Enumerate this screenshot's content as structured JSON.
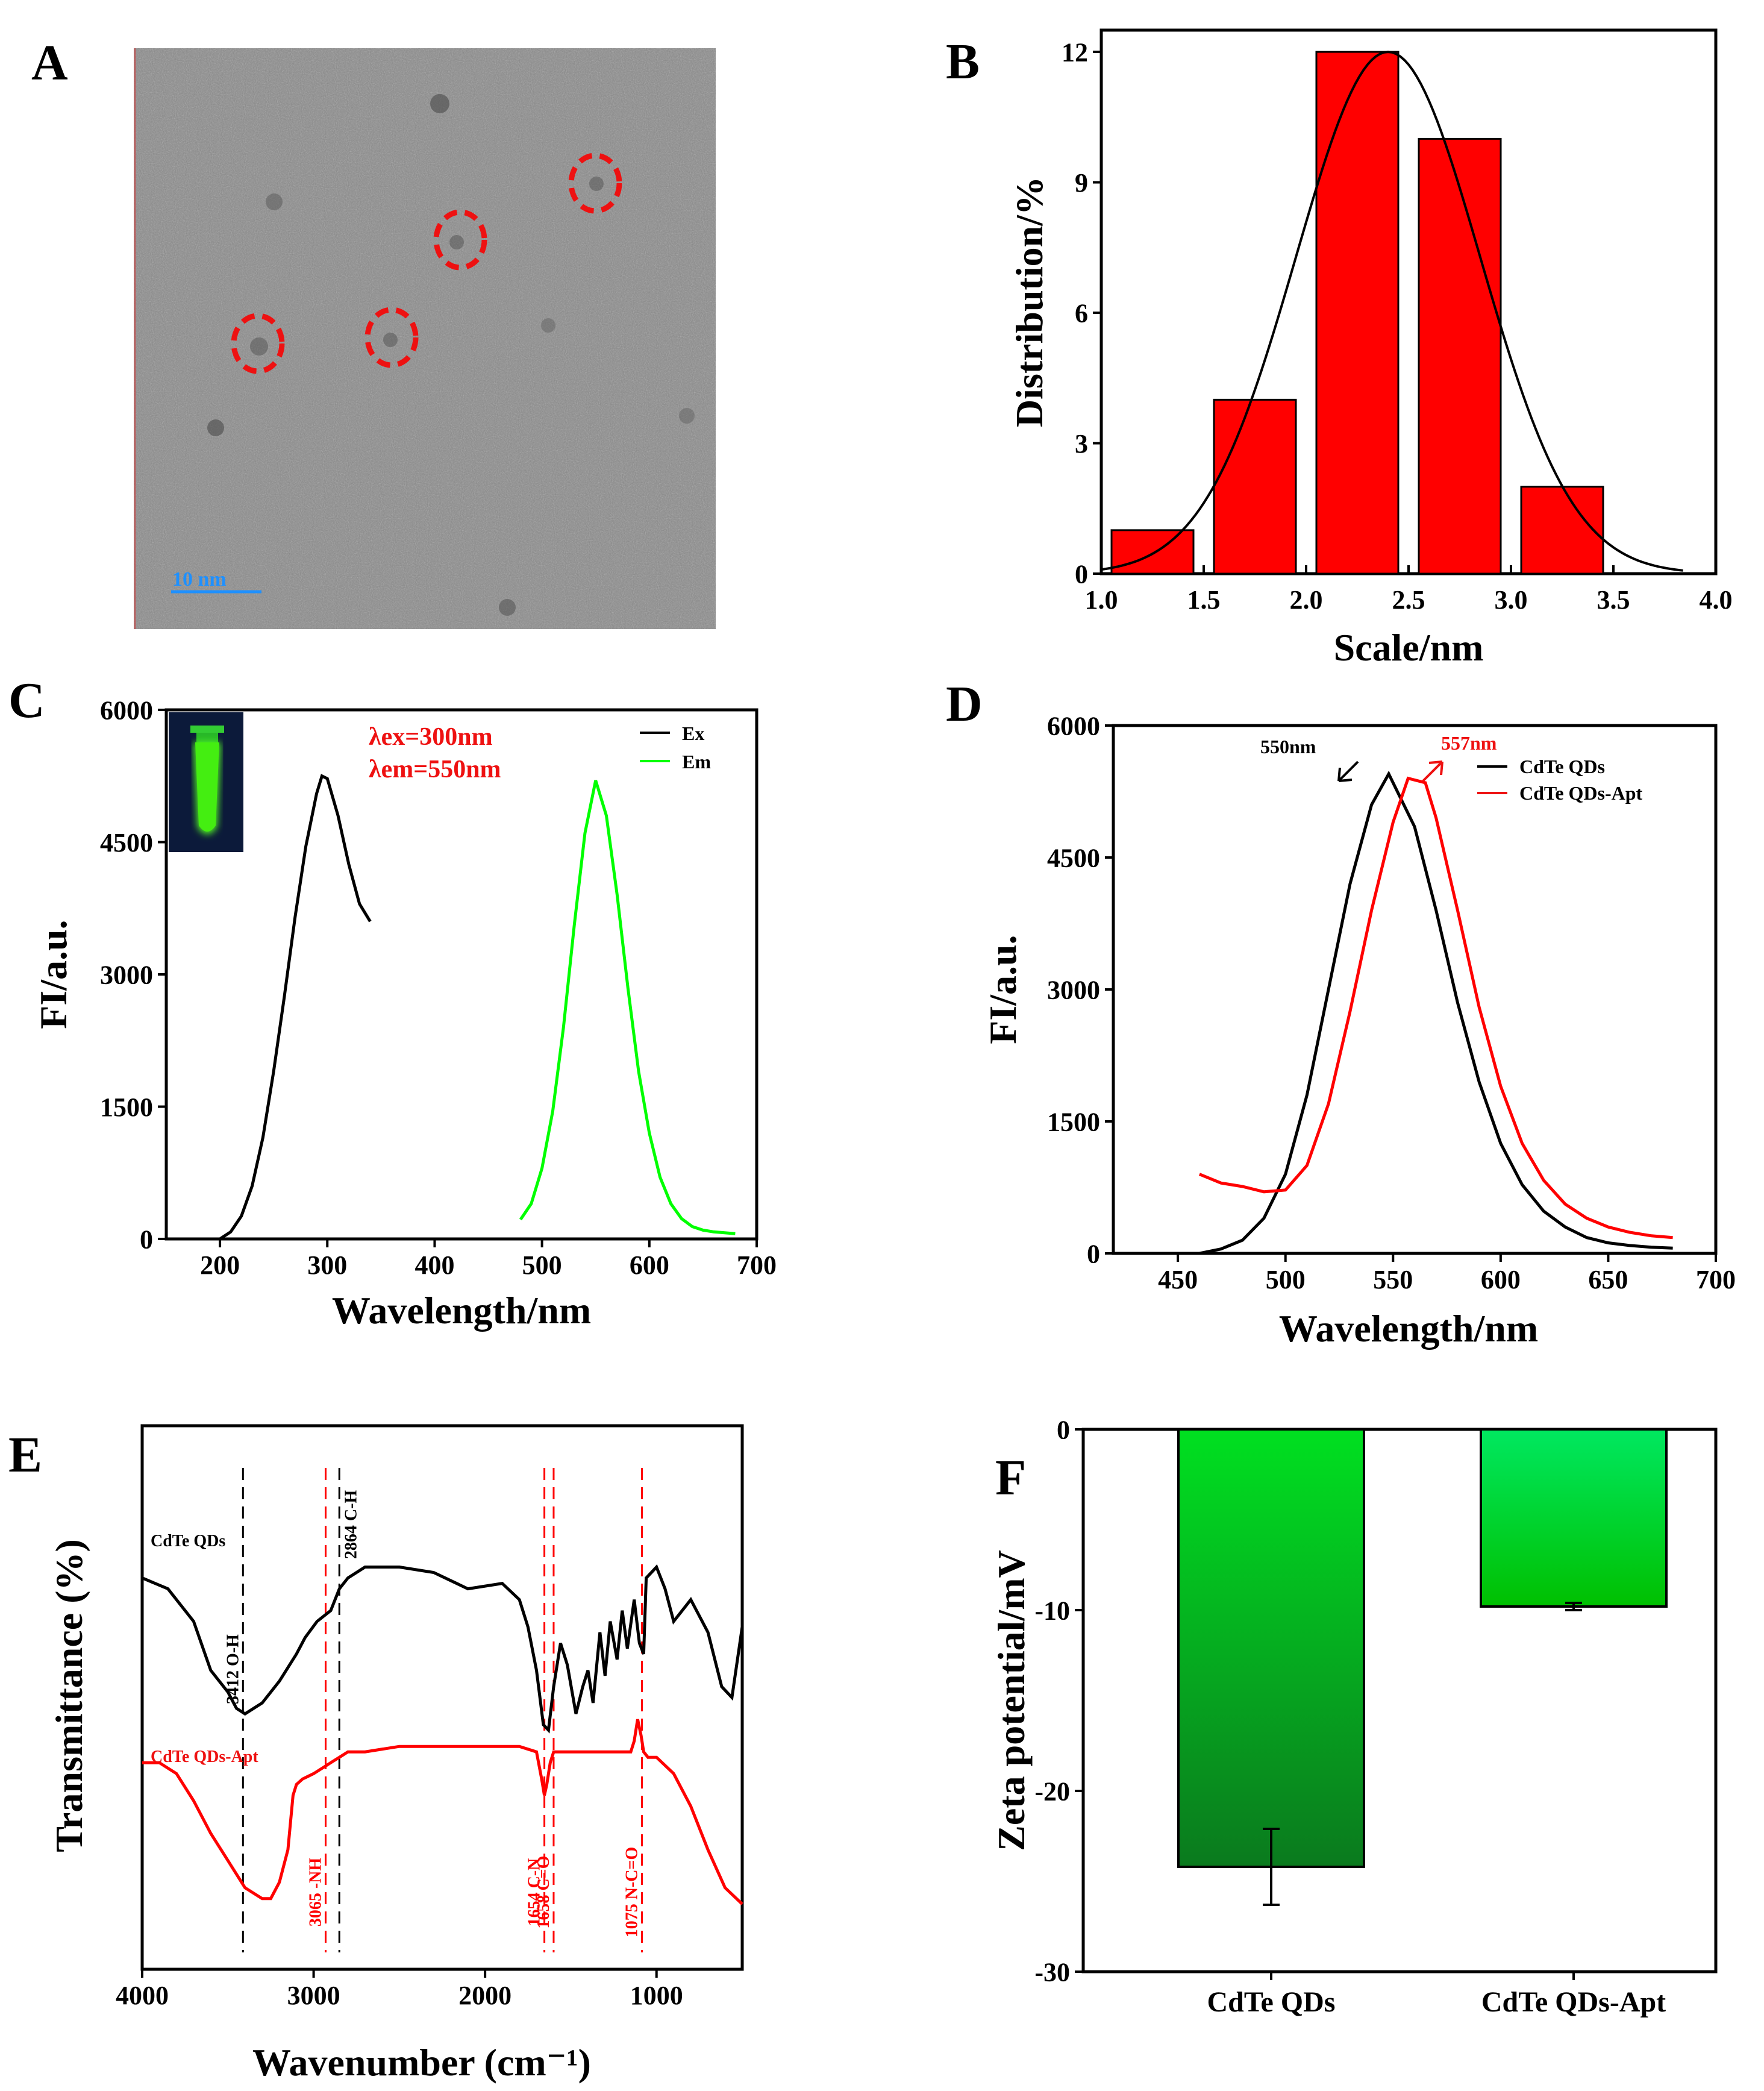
{
  "panels": {
    "A": {
      "letter": "A",
      "scale_bar_label": "10 nm"
    },
    "B": {
      "letter": "B",
      "chart_data": {
        "type": "bar",
        "bars": [
          {
            "from": 1.05,
            "to": 1.45,
            "value": 1
          },
          {
            "from": 1.55,
            "to": 1.95,
            "value": 4
          },
          {
            "from": 2.05,
            "to": 2.45,
            "value": 12
          },
          {
            "from": 2.55,
            "to": 2.95,
            "value": 10
          },
          {
            "from": 3.05,
            "to": 3.45,
            "value": 2
          }
        ],
        "fit": {
          "type": "gaussian",
          "peak": 12,
          "center": 2.4,
          "sigma": 0.45
        },
        "xlabel": "Scale/nm",
        "ylabel": "Distribution/%",
        "xlim": [
          1.0,
          4.0
        ],
        "ylim": [
          0,
          12.5
        ],
        "xticks": [
          "1.0",
          "1.5",
          "2.0",
          "2.5",
          "3.0",
          "3.5",
          "4.0"
        ],
        "yticks": [
          "0",
          "3",
          "6",
          "9",
          "12"
        ],
        "bar_color": "#ff0000"
      }
    },
    "C": {
      "letter": "C",
      "chart_data": {
        "type": "line",
        "xlabel": "Wavelength/nm",
        "ylabel": "FI/a.u.",
        "xlim": [
          150,
          700
        ],
        "ylim": [
          0,
          6000
        ],
        "xticks": [
          "200",
          "300",
          "400",
          "500",
          "600",
          "700"
        ],
        "yticks": [
          "0",
          "1500",
          "3000",
          "4500",
          "6000"
        ],
        "annotations": [
          "λex=300nm",
          "λem=550nm"
        ],
        "series": [
          {
            "name": "Ex",
            "color": "#000000",
            "x": [
              200,
              210,
              220,
              230,
              240,
              250,
              260,
              270,
              280,
              290,
              295,
              300,
              310,
              320,
              330,
              340
            ],
            "y": [
              0,
              80,
              260,
              600,
              1150,
              1900,
              2750,
              3650,
              4450,
              5050,
              5250,
              5220,
              4800,
              4250,
              3800,
              3600
            ]
          },
          {
            "name": "Em",
            "color": "#00ff00",
            "x": [
              480,
              490,
              500,
              510,
              520,
              530,
              540,
              550,
              560,
              570,
              580,
              590,
              600,
              610,
              620,
              630,
              640,
              650,
              660,
              670,
              680
            ],
            "y": [
              220,
              400,
              800,
              1450,
              2400,
              3550,
              4600,
              5200,
              4800,
              3900,
              2850,
              1900,
              1200,
              700,
              400,
              230,
              140,
              100,
              80,
              70,
              60
            ]
          }
        ]
      }
    },
    "D": {
      "letter": "D",
      "chart_data": {
        "type": "line",
        "xlabel": "Wavelength/nm",
        "ylabel": "FI/a.u.",
        "xlim": [
          420,
          700
        ],
        "ylim": [
          0,
          6000
        ],
        "xticks": [
          "450",
          "500",
          "550",
          "600",
          "650",
          "700"
        ],
        "yticks": [
          "0",
          "1500",
          "3000",
          "4500",
          "6000"
        ],
        "annotations": [
          "550nm",
          "557nm"
        ],
        "series": [
          {
            "name": "CdTe QDs",
            "color": "#000000",
            "x": [
              460,
              470,
              480,
              490,
              500,
              510,
              520,
              530,
              540,
              548,
              560,
              570,
              580,
              590,
              600,
              610,
              620,
              630,
              640,
              650,
              660,
              670,
              680
            ],
            "y": [
              0,
              50,
              150,
              400,
              900,
              1800,
              3000,
              4200,
              5100,
              5450,
              4850,
              3900,
              2850,
              1950,
              1250,
              780,
              480,
              300,
              180,
              120,
              90,
              70,
              60
            ]
          },
          {
            "name": "CdTe QDs-Apt",
            "color": "#ff0000",
            "x": [
              460,
              470,
              480,
              490,
              500,
              510,
              520,
              530,
              540,
              550,
              557,
              565,
              570,
              580,
              590,
              600,
              610,
              620,
              630,
              640,
              650,
              660,
              670,
              680
            ],
            "y": [
              900,
              800,
              760,
              700,
              720,
              1000,
              1700,
              2750,
              3900,
              4900,
              5400,
              5350,
              4950,
              3900,
              2800,
              1900,
              1250,
              830,
              560,
              400,
              300,
              240,
              200,
              180
            ]
          }
        ]
      }
    },
    "E": {
      "letter": "E",
      "chart_data": {
        "type": "line",
        "xlabel": "Wavenumber (cm⁻¹)",
        "ylabel": "Transmittance (%)",
        "xlim": [
          4000,
          500
        ],
        "ylim": [
          0,
          100
        ],
        "xticks": [
          "4000",
          "3000",
          "2000",
          "1000"
        ],
        "series": [
          {
            "name": "CdTe QDs",
            "color": "#000000",
            "x": [
              4000,
              3850,
              3700,
              3600,
              3500,
              3450,
              3400,
              3300,
              3200,
              3100,
              3050,
              2980,
              2900,
              2850,
              2800,
              2700,
              2500,
              2300,
              2100,
              1900,
              1800,
              1750,
              1700,
              1660,
              1630,
              1600,
              1560,
              1520,
              1470,
              1430,
              1400,
              1370,
              1330,
              1300,
              1270,
              1230,
              1200,
              1170,
              1130,
              1100,
              1075,
              1060,
              1000,
              950,
              900,
              850,
              800,
              700,
              620,
              560,
              500
            ],
            "y": [
              72,
              70,
              64,
              55,
              51,
              48,
              47,
              49,
              53,
              58,
              61,
              64,
              66,
              70,
              72,
              74,
              74,
              73,
              70,
              71,
              68,
              63,
              55,
              45,
              44,
              52,
              60,
              56,
              47,
              52,
              55,
              49,
              62,
              54,
              64,
              57,
              66,
              59,
              68,
              60,
              58,
              72,
              74,
              70,
              64,
              66,
              68,
              62,
              52,
              50,
              63
            ]
          },
          {
            "name": "CdTe QDs-Apt",
            "color": "#ff0000",
            "x": [
              4000,
              3900,
              3800,
              3700,
              3600,
              3500,
              3400,
              3300,
              3250,
              3200,
              3150,
              3120,
              3100,
              3065,
              3000,
              2950,
              2900,
              2850,
              2800,
              2700,
              2500,
              2000,
              1800,
              1700,
              1670,
              1654,
              1640,
              1620,
              1600,
              1500,
              1400,
              1300,
              1200,
              1150,
              1130,
              1110,
              1090,
              1075,
              1050,
              1000,
              900,
              800,
              700,
              600,
              500
            ],
            "y": [
              38,
              38,
              36,
              31,
              25,
              20,
              15,
              13,
              13,
              16,
              22,
              32,
              34,
              35,
              36,
              37,
              38,
              39,
              40,
              40,
              41,
              41,
              41,
              40,
              35,
              32,
              34,
              38,
              40,
              40,
              40,
              40,
              40,
              40,
              42,
              46,
              43,
              40,
              39,
              39,
              36,
              30,
              22,
              15,
              12
            ]
          }
        ],
        "markers": [
          {
            "position": 3412,
            "label": "3412 O-H",
            "color": "#000000"
          },
          {
            "position": 2930,
            "label": "3065 -NH",
            "color": "#ff0000"
          },
          {
            "position": 2850,
            "label": "2864 C-H",
            "color": "#000000"
          },
          {
            "position": 1654,
            "label": "1654 C-N",
            "color": "#ff0000"
          },
          {
            "position": 1600,
            "label": "1658 C=O",
            "color": "#ff0000"
          },
          {
            "position": 1085,
            "label": "1075 N-C=O",
            "color": "#ff0000"
          }
        ]
      }
    },
    "F": {
      "letter": "F",
      "chart_data": {
        "type": "bar",
        "categories": [
          "CdTe QDs",
          "CdTe QDs-Apt"
        ],
        "values": [
          -24.2,
          -9.8
        ],
        "errors": [
          2.1,
          0.2
        ],
        "ylabel": "Zeta potential/mV",
        "ylim": [
          -30,
          0
        ],
        "yticks": [
          "0",
          "-10",
          "-20",
          "-30"
        ]
      }
    }
  }
}
